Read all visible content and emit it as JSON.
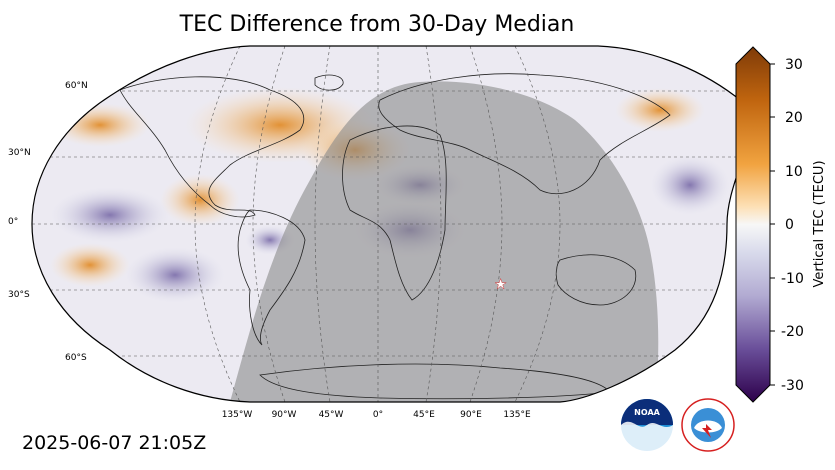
{
  "title": "TEC Difference from 30-Day Median",
  "timestamp": "2025-06-07 21:05Z",
  "latitude_labels": [
    "60°N",
    "30°N",
    "0°",
    "30°S",
    "60°S"
  ],
  "longitude_labels": [
    "135°W",
    "90°W",
    "45°W",
    "0°",
    "45°E",
    "90°E",
    "135°E"
  ],
  "colorbar": {
    "label": "Vertical TEC (TECU)",
    "ticks": [
      "30",
      "20",
      "10",
      "0",
      "-10",
      "-20",
      "-30"
    ],
    "range": [
      -30,
      30
    ],
    "color_low": "#2d004b",
    "color_mid": "#f7f7f7",
    "color_high": "#7f3b08"
  },
  "logos": {
    "noaa": "NOAA",
    "nws": "NATIONAL WEATHER SERVICE"
  },
  "colors": {
    "night_shade": "#8a8a8a",
    "positive": "#e08214",
    "negative": "#6a5a9e"
  }
}
